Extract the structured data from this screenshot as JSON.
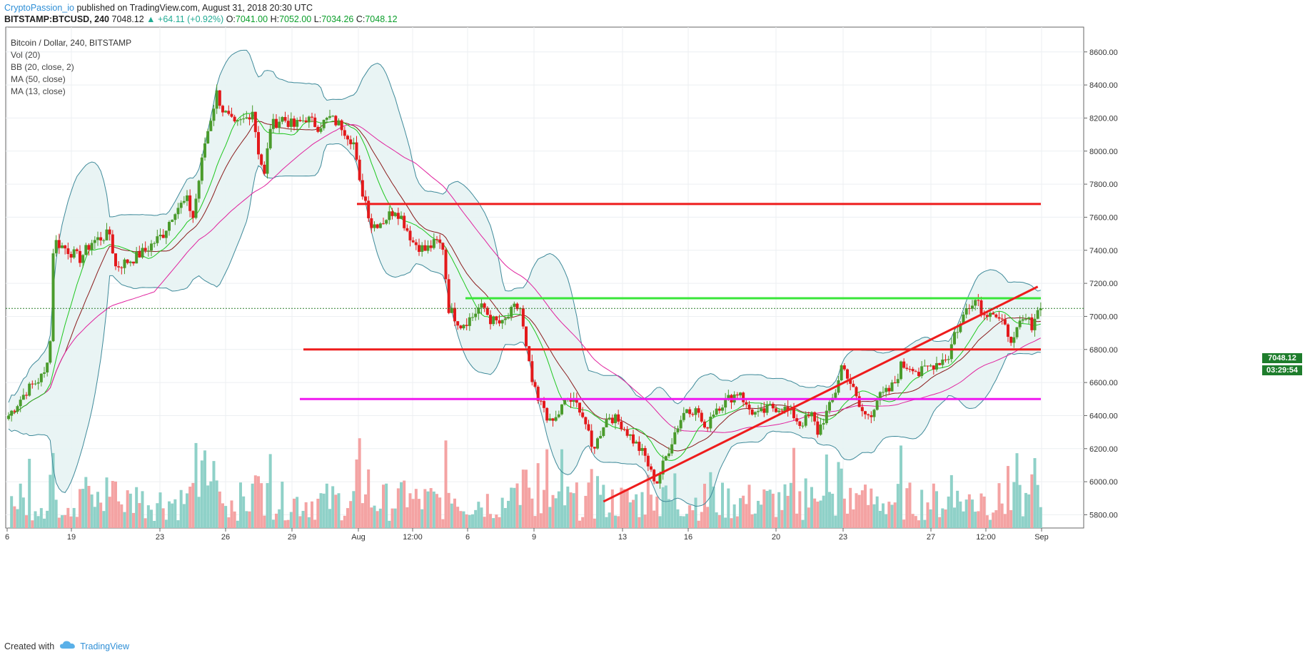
{
  "header": {
    "author": "CryptoPassion_io",
    "published": "published on TradingView.com, August 31, 2018 20:30 UTC",
    "ticker": "BITSTAMP:BTCUSD, 240",
    "last": "7048.12",
    "change": "▲ +64.11 (+0.92%)",
    "o_label": "O:",
    "o_val": "7041.00",
    "h_label": "H:",
    "h_val": "7052.00",
    "l_label": "L:",
    "l_val": "7034.26",
    "c_label": "C:",
    "c_val": "7048.12"
  },
  "legend": {
    "symbol": "Bitcoin / Dollar, 240, BITSTAMP",
    "vol": "Vol (20)",
    "bb": "BB (20, close, 2)",
    "ma50": "MA (50, close)",
    "ma13": "MA (13, close)"
  },
  "price_tags": {
    "last": "7048.12",
    "countdown": "03:29:54"
  },
  "footer": {
    "created": "Created with",
    "brand": "TradingView"
  },
  "colors": {
    "up": "#4a9b2c",
    "down": "#e3191b",
    "vol_up": "#8fd1c8",
    "vol_down": "#f4a3a3",
    "bb": "#3f8a9a",
    "bb_fill": "#e7f3f3",
    "ma50": "#e0229e",
    "ma13": "#1ec71e",
    "ma20": "#8a1c1c",
    "line_red": "#ee1c1c",
    "line_green": "#39e639",
    "line_magenta": "#f018f0"
  },
  "chart_data": {
    "type": "candlestick",
    "title": "Bitcoin / Dollar, 240, BITSTAMP",
    "ylim": [
      5720,
      8750
    ],
    "y_ticks": [
      "8600.00",
      "8400.00",
      "8200.00",
      "8000.00",
      "7800.00",
      "7600.00",
      "7400.00",
      "7200.00",
      "7000.00",
      "6800.00",
      "6600.00",
      "6400.00",
      "6200.00",
      "6000.00",
      "5800.00"
    ],
    "x_ticks": [
      "6",
      "19",
      "23",
      "26",
      "29",
      "Aug",
      "12:00",
      "6",
      "9",
      "13",
      "16",
      "20",
      "23",
      "27",
      "12:00",
      "Sep"
    ],
    "anchors": [
      [
        0,
        6400
      ],
      [
        6,
        6550
      ],
      [
        12,
        6650
      ],
      [
        14,
        6850
      ],
      [
        15,
        7400
      ],
      [
        16,
        7450
      ],
      [
        24,
        7350
      ],
      [
        28,
        7450
      ],
      [
        34,
        7500
      ],
      [
        36,
        7300
      ],
      [
        42,
        7350
      ],
      [
        46,
        7400
      ],
      [
        52,
        7500
      ],
      [
        56,
        7650
      ],
      [
        60,
        7700
      ],
      [
        62,
        7600
      ],
      [
        66,
        8050
      ],
      [
        68,
        8200
      ],
      [
        70,
        8350
      ],
      [
        72,
        8250
      ],
      [
        76,
        8150
      ],
      [
        80,
        8200
      ],
      [
        82,
        8250
      ],
      [
        84,
        8000
      ],
      [
        86,
        7850
      ],
      [
        88,
        8150
      ],
      [
        92,
        8200
      ],
      [
        96,
        8150
      ],
      [
        100,
        8200
      ],
      [
        104,
        8150
      ],
      [
        108,
        8200
      ],
      [
        112,
        8150
      ],
      [
        114,
        8100
      ],
      [
        116,
        8050
      ],
      [
        118,
        7800
      ],
      [
        120,
        7700
      ],
      [
        122,
        7550
      ],
      [
        126,
        7580
      ],
      [
        130,
        7650
      ],
      [
        132,
        7600
      ],
      [
        136,
        7450
      ],
      [
        140,
        7400
      ],
      [
        144,
        7450
      ],
      [
        146,
        7420
      ],
      [
        148,
        7050
      ],
      [
        152,
        6950
      ],
      [
        156,
        7000
      ],
      [
        158,
        7050
      ],
      [
        160,
        7050
      ],
      [
        162,
        6980
      ],
      [
        166,
        6950
      ],
      [
        168,
        7000
      ],
      [
        170,
        7050
      ],
      [
        172,
        7050
      ],
      [
        174,
        6800
      ],
      [
        176,
        6600
      ],
      [
        178,
        6480
      ],
      [
        180,
        6450
      ],
      [
        182,
        6350
      ],
      [
        184,
        6380
      ],
      [
        186,
        6450
      ],
      [
        188,
        6500
      ],
      [
        192,
        6450
      ],
      [
        194,
        6350
      ],
      [
        196,
        6200
      ],
      [
        198,
        6250
      ],
      [
        200,
        6350
      ],
      [
        202,
        6400
      ],
      [
        206,
        6350
      ],
      [
        208,
        6300
      ],
      [
        210,
        6250
      ],
      [
        212,
        6200
      ],
      [
        214,
        6150
      ],
      [
        216,
        6050
      ],
      [
        218,
        6000
      ],
      [
        220,
        6100
      ],
      [
        222,
        6200
      ],
      [
        224,
        6300
      ],
      [
        226,
        6380
      ],
      [
        228,
        6450
      ],
      [
        232,
        6420
      ],
      [
        234,
        6300
      ],
      [
        236,
        6400
      ],
      [
        238,
        6450
      ],
      [
        242,
        6500
      ],
      [
        246,
        6550
      ],
      [
        248,
        6450
      ],
      [
        252,
        6400
      ],
      [
        256,
        6450
      ],
      [
        260,
        6450
      ],
      [
        264,
        6400
      ],
      [
        266,
        6350
      ],
      [
        270,
        6400
      ],
      [
        272,
        6300
      ],
      [
        274,
        6380
      ],
      [
        276,
        6450
      ],
      [
        278,
        6550
      ],
      [
        280,
        6700
      ],
      [
        282,
        6650
      ],
      [
        284,
        6550
      ],
      [
        286,
        6450
      ],
      [
        288,
        6400
      ],
      [
        290,
        6420
      ],
      [
        292,
        6500
      ],
      [
        296,
        6550
      ],
      [
        298,
        6600
      ],
      [
        300,
        6700
      ],
      [
        304,
        6700
      ],
      [
        306,
        6650
      ],
      [
        308,
        6680
      ],
      [
        310,
        6700
      ],
      [
        312,
        6720
      ],
      [
        314,
        6740
      ],
      [
        316,
        6760
      ],
      [
        318,
        6900
      ],
      [
        320,
        6950
      ],
      [
        322,
        7050
      ],
      [
        324,
        7100
      ],
      [
        326,
        7100
      ],
      [
        328,
        7000
      ],
      [
        330,
        7050
      ],
      [
        332,
        7000
      ],
      [
        334,
        6950
      ],
      [
        336,
        6900
      ],
      [
        338,
        6850
      ],
      [
        340,
        6950
      ],
      [
        342,
        6980
      ],
      [
        344,
        6950
      ],
      [
        346,
        7048
      ]
    ],
    "levels": [
      {
        "name": "resistance-7680",
        "value": 7680,
        "color": "red"
      },
      {
        "name": "resistance-7110",
        "value": 7110,
        "color": "green"
      },
      {
        "name": "support-6800",
        "value": 6800,
        "color": "red"
      },
      {
        "name": "support-6500",
        "value": 6500,
        "color": "magenta"
      }
    ],
    "trendline": {
      "from": [
        200,
        5880
      ],
      "to": [
        346,
        7180
      ]
    },
    "last_price": 7048.12
  }
}
